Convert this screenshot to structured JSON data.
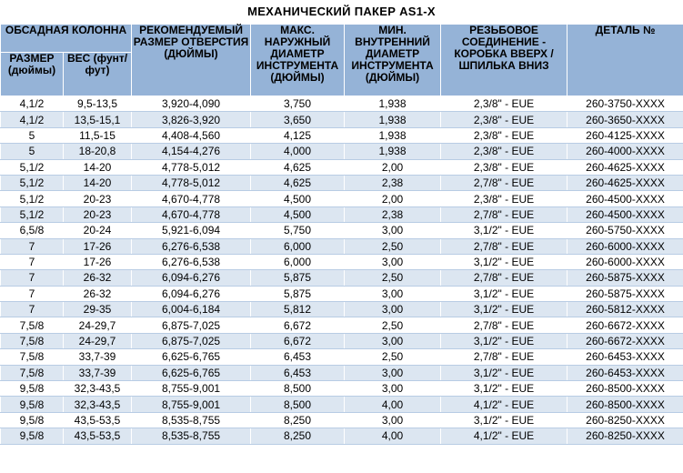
{
  "title": "МЕХАНИЧЕСКИЙ ПАКЕР AS1-X",
  "headers": {
    "casing": "ОБСАДНАЯ КОЛОННА",
    "size": "РАЗМЕР (дюймы)",
    "weight": "ВЕС (фунт/фут)",
    "bore": "РЕКОМЕНДУЕМЫЙ РАЗМЕР ОТВЕРСТИЯ (дюймы)",
    "od": "МАКС. НАРУЖНЫЙ ДИАМЕТР ИНСТРУМЕНТА (дюймы)",
    "id": "МИН. ВНУТРЕННИЙ ДИАМЕТР ИНСТРУМЕНТА (дюймы)",
    "thread": "РЕЗЬБОВОЕ СОЕДИНЕНИЕ - КОРОБКА ВВЕРХ /ШПИЛЬКА ВНИЗ",
    "part": "ДЕТАЛЬ №"
  },
  "rows": [
    [
      "4,1/2",
      "9,5-13,5",
      "3,920-4,090",
      "3,750",
      "1,938",
      "2,3/8\" - EUE",
      "260-3750-XXXX"
    ],
    [
      "4,1/2",
      "13,5-15,1",
      "3,826-3,920",
      "3,650",
      "1,938",
      "2,3/8\" - EUE",
      "260-3650-XXXX"
    ],
    [
      "5",
      "11,5-15",
      "4,408-4,560",
      "4,125",
      "1,938",
      "2,3/8\" - EUE",
      "260-4125-XXXX"
    ],
    [
      "5",
      "18-20,8",
      "4,154-4,276",
      "4,000",
      "1,938",
      "2,3/8\" - EUE",
      "260-4000-XXXX"
    ],
    [
      "5,1/2",
      "14-20",
      "4,778-5,012",
      "4,625",
      "2,00",
      "2,3/8\" - EUE",
      "260-4625-XXXX"
    ],
    [
      "5,1/2",
      "14-20",
      "4,778-5,012",
      "4,625",
      "2,38",
      "2,7/8\" - EUE",
      "260-4625-XXXX"
    ],
    [
      "5,1/2",
      "20-23",
      "4,670-4,778",
      "4,500",
      "2,00",
      "2,3/8\" - EUE",
      "260-4500-XXXX"
    ],
    [
      "5,1/2",
      "20-23",
      "4,670-4,778",
      "4,500",
      "2,38",
      "2,7/8\" - EUE",
      "260-4500-XXXX"
    ],
    [
      "6,5/8",
      "20-24",
      "5,921-6,094",
      "5,750",
      "3,00",
      "3,1/2\" - EUE",
      "260-5750-XXXX"
    ],
    [
      "7",
      "17-26",
      "6,276-6,538",
      "6,000",
      "2,50",
      "2,7/8\" - EUE",
      "260-6000-XXXX"
    ],
    [
      "7",
      "17-26",
      "6,276-6,538",
      "6,000",
      "3,00",
      "3,1/2\" - EUE",
      "260-6000-XXXX"
    ],
    [
      "7",
      "26-32",
      "6,094-6,276",
      "5,875",
      "2,50",
      "2,7/8\" - EUE",
      "260-5875-XXXX"
    ],
    [
      "7",
      "26-32",
      "6,094-6,276",
      "5,875",
      "3,00",
      "3,1/2\" - EUE",
      "260-5875-XXXX"
    ],
    [
      "7",
      "29-35",
      "6,004-6,184",
      "5,812",
      "3,00",
      "3,1/2\" - EUE",
      "260-5812-XXXX"
    ],
    [
      "7,5/8",
      "24-29,7",
      "6,875-7,025",
      "6,672",
      "2,50",
      "2,7/8\" - EUE",
      "260-6672-XXXX"
    ],
    [
      "7,5/8",
      "24-29,7",
      "6,875-7,025",
      "6,672",
      "3,00",
      "3,1/2\" - EUE",
      "260-6672-XXXX"
    ],
    [
      "7,5/8",
      "33,7-39",
      "6,625-6,765",
      "6,453",
      "2,50",
      "2,7/8\" - EUE",
      "260-6453-XXXX"
    ],
    [
      "7,5/8",
      "33,7-39",
      "6,625-6,765",
      "6,453",
      "3,00",
      "3,1/2\" - EUE",
      "260-6453-XXXX"
    ],
    [
      "9,5/8",
      "32,3-43,5",
      "8,755-9,001",
      "8,500",
      "3,00",
      "3,1/2\" - EUE",
      "260-8500-XXXX"
    ],
    [
      "9,5/8",
      "32,3-43,5",
      "8,755-9,001",
      "8,500",
      "4,00",
      "4,1/2\" - EUE",
      "260-8500-XXXX"
    ],
    [
      "9,5/8",
      "43,5-53,5",
      "8,535-8,755",
      "8,250",
      "3,00",
      "3,1/2\" - EUE",
      "260-8250-XXXX"
    ],
    [
      "9,5/8",
      "43,5-53,5",
      "8,535-8,755",
      "8,250",
      "4,00",
      "4,1/2\" - EUE",
      "260-8250-XXXX"
    ]
  ]
}
